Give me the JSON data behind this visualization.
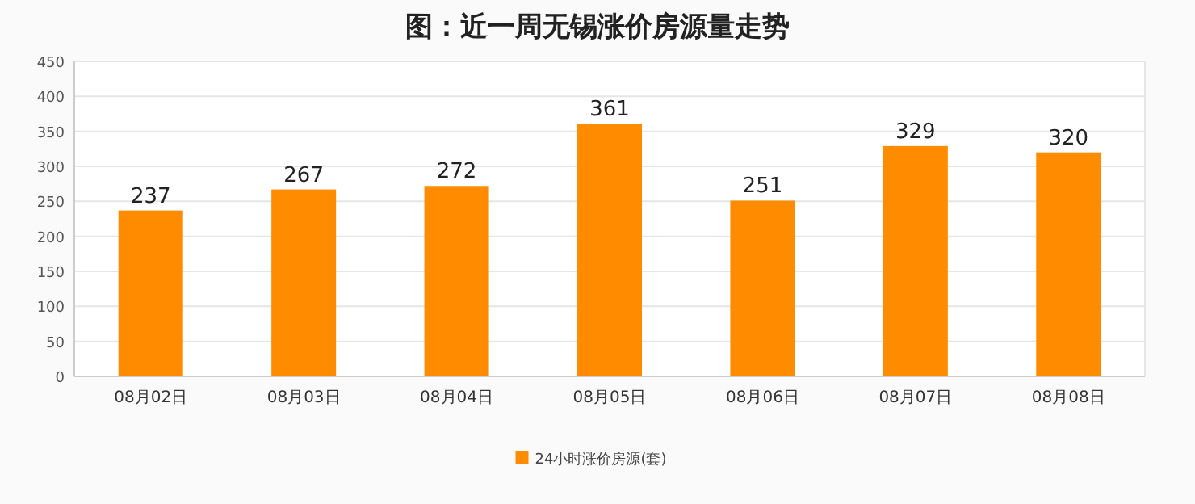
{
  "chart_data": {
    "type": "bar",
    "title": "图：近一周无锡涨价房源量走势",
    "categories": [
      "08月02日",
      "08月03日",
      "08月04日",
      "08月05日",
      "08月06日",
      "08月07日",
      "08月08日"
    ],
    "series": [
      {
        "name": "24小时涨价房源(套)",
        "color": "#ff8c00",
        "values": [
          237,
          267,
          272,
          361,
          251,
          329,
          320
        ]
      }
    ],
    "ylim": [
      0,
      450
    ],
    "yticks": [
      0,
      50,
      100,
      150,
      200,
      250,
      300,
      350,
      400,
      450
    ],
    "grid": "y",
    "legend": "bottom",
    "data_labels": true
  }
}
